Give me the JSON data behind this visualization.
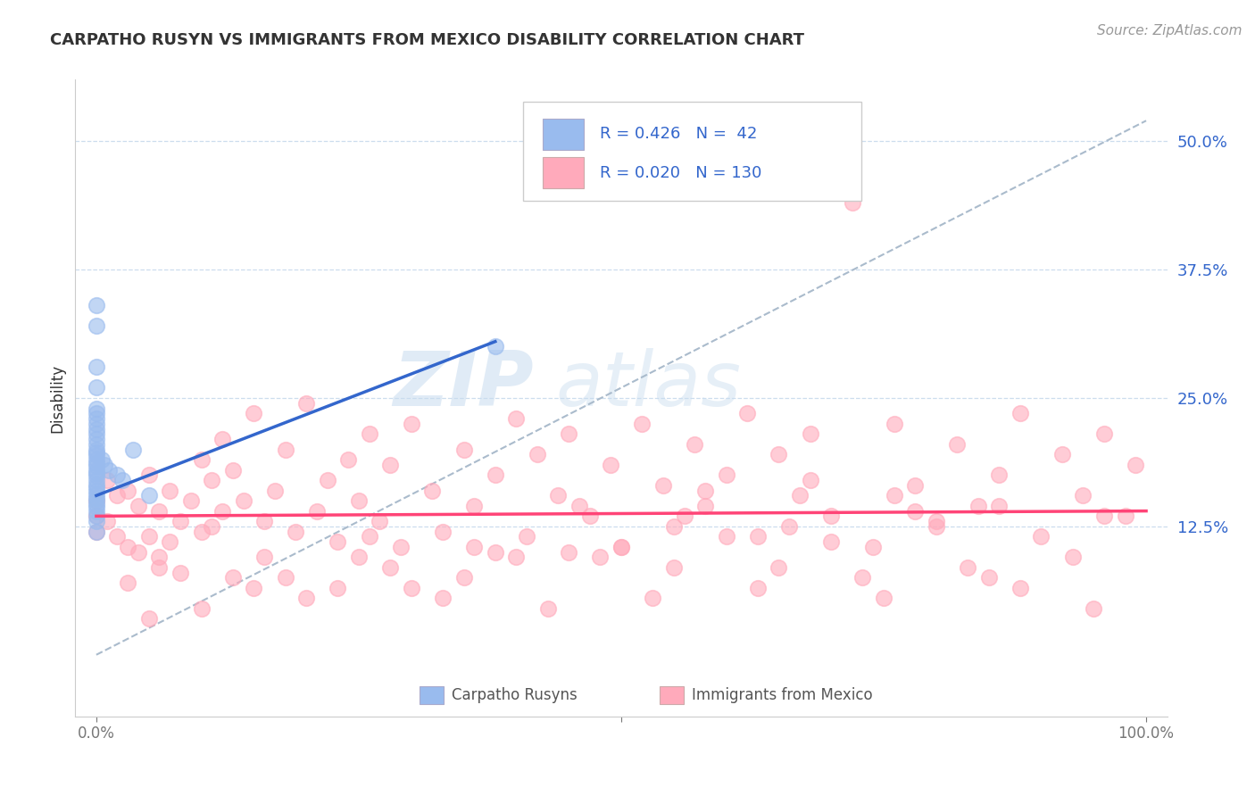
{
  "title": "CARPATHO RUSYN VS IMMIGRANTS FROM MEXICO DISABILITY CORRELATION CHART",
  "source": "Source: ZipAtlas.com",
  "ylabel": "Disability",
  "xlim": [
    -0.02,
    1.02
  ],
  "ylim": [
    -0.06,
    0.56
  ],
  "y_ticks": [
    0.125,
    0.25,
    0.375,
    0.5
  ],
  "y_tick_labels": [
    "12.5%",
    "25.0%",
    "37.5%",
    "50.0%"
  ],
  "color_blue_fill": "#99BBEE",
  "color_pink_fill": "#FFAABB",
  "color_blue_line": "#3366CC",
  "color_pink_line": "#FF4477",
  "color_dashed": "#AABBCC",
  "color_grid": "#CCDDEE",
  "watermark_color": "#DDEEFF",
  "carpatho_x": [
    0.0,
    0.0,
    0.0,
    0.0,
    0.0,
    0.0,
    0.0,
    0.0,
    0.0,
    0.0,
    0.0,
    0.0,
    0.0,
    0.0,
    0.0,
    0.0,
    0.0,
    0.0,
    0.0,
    0.0,
    0.0,
    0.0,
    0.0,
    0.0,
    0.0,
    0.0,
    0.0,
    0.0,
    0.0,
    0.0,
    0.0,
    0.0,
    0.0,
    0.0,
    0.005,
    0.008,
    0.012,
    0.02,
    0.025,
    0.035,
    0.05,
    0.38
  ],
  "carpatho_y": [
    0.34,
    0.32,
    0.28,
    0.26,
    0.24,
    0.235,
    0.23,
    0.225,
    0.22,
    0.215,
    0.21,
    0.205,
    0.2,
    0.197,
    0.194,
    0.19,
    0.187,
    0.184,
    0.18,
    0.177,
    0.174,
    0.17,
    0.166,
    0.163,
    0.16,
    0.156,
    0.153,
    0.15,
    0.147,
    0.144,
    0.14,
    0.135,
    0.13,
    0.12,
    0.19,
    0.185,
    0.18,
    0.175,
    0.17,
    0.2,
    0.155,
    0.3
  ],
  "blue_line_x": [
    0.0,
    0.38
  ],
  "blue_line_y": [
    0.155,
    0.305
  ],
  "pink_line_x": [
    0.0,
    1.0
  ],
  "pink_line_y": [
    0.135,
    0.14
  ],
  "dashed_line_x": [
    0.0,
    1.0
  ],
  "dashed_line_y": [
    0.0,
    0.52
  ],
  "mexico_x": [
    0.0,
    0.0,
    0.0,
    0.01,
    0.01,
    0.02,
    0.02,
    0.03,
    0.03,
    0.04,
    0.04,
    0.05,
    0.05,
    0.06,
    0.06,
    0.07,
    0.07,
    0.08,
    0.09,
    0.1,
    0.1,
    0.11,
    0.12,
    0.12,
    0.13,
    0.14,
    0.15,
    0.16,
    0.17,
    0.18,
    0.19,
    0.2,
    0.21,
    0.22,
    0.23,
    0.24,
    0.25,
    0.26,
    0.27,
    0.28,
    0.29,
    0.3,
    0.32,
    0.33,
    0.35,
    0.36,
    0.38,
    0.4,
    0.41,
    0.42,
    0.44,
    0.45,
    0.47,
    0.49,
    0.5,
    0.52,
    0.54,
    0.55,
    0.57,
    0.58,
    0.6,
    0.62,
    0.63,
    0.65,
    0.67,
    0.68,
    0.7,
    0.72,
    0.74,
    0.76,
    0.78,
    0.8,
    0.82,
    0.84,
    0.86,
    0.88,
    0.9,
    0.92,
    0.94,
    0.96,
    0.98,
    0.99,
    0.5,
    0.4,
    0.6,
    0.7,
    0.8,
    0.55,
    0.45,
    0.35,
    0.25,
    0.15,
    0.65,
    0.75,
    0.85,
    0.95,
    0.3,
    0.2,
    0.1,
    0.05,
    0.58,
    0.68,
    0.78,
    0.88,
    0.48,
    0.38,
    0.28,
    0.18,
    0.08,
    0.03,
    0.53,
    0.63,
    0.73,
    0.83,
    0.93,
    0.43,
    0.33,
    0.23,
    0.13,
    0.06,
    0.16,
    0.26,
    0.36,
    0.46,
    0.56,
    0.66,
    0.76,
    0.86,
    0.96,
    0.11
  ],
  "mexico_y": [
    0.15,
    0.135,
    0.12,
    0.17,
    0.13,
    0.155,
    0.115,
    0.16,
    0.105,
    0.145,
    0.1,
    0.175,
    0.115,
    0.14,
    0.095,
    0.16,
    0.11,
    0.13,
    0.15,
    0.19,
    0.12,
    0.17,
    0.21,
    0.14,
    0.18,
    0.15,
    0.235,
    0.13,
    0.16,
    0.2,
    0.12,
    0.245,
    0.14,
    0.17,
    0.11,
    0.19,
    0.15,
    0.215,
    0.13,
    0.185,
    0.105,
    0.225,
    0.16,
    0.12,
    0.2,
    0.145,
    0.175,
    0.23,
    0.115,
    0.195,
    0.155,
    0.215,
    0.135,
    0.185,
    0.105,
    0.225,
    0.165,
    0.125,
    0.205,
    0.145,
    0.175,
    0.235,
    0.115,
    0.195,
    0.155,
    0.215,
    0.135,
    0.44,
    0.105,
    0.225,
    0.165,
    0.125,
    0.205,
    0.145,
    0.175,
    0.235,
    0.115,
    0.195,
    0.155,
    0.215,
    0.135,
    0.185,
    0.105,
    0.095,
    0.115,
    0.11,
    0.13,
    0.085,
    0.1,
    0.075,
    0.095,
    0.065,
    0.085,
    0.055,
    0.075,
    0.045,
    0.065,
    0.055,
    0.045,
    0.035,
    0.16,
    0.17,
    0.14,
    0.065,
    0.095,
    0.1,
    0.085,
    0.075,
    0.08,
    0.07,
    0.055,
    0.065,
    0.075,
    0.085,
    0.095,
    0.045,
    0.055,
    0.065,
    0.075,
    0.085,
    0.095,
    0.115,
    0.105,
    0.145,
    0.135,
    0.125,
    0.155,
    0.145,
    0.135,
    0.125
  ]
}
